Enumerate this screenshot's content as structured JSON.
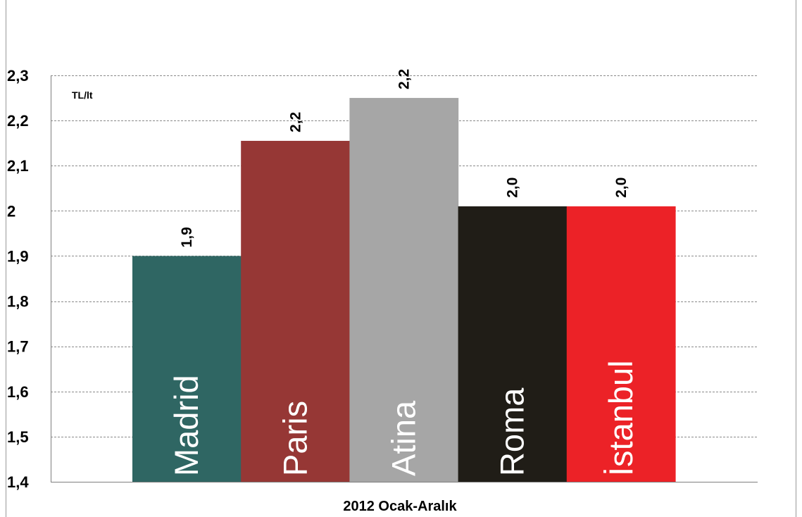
{
  "chart_data": {
    "type": "bar",
    "categories": [
      "Madrid",
      "Paris",
      "Atina",
      "Roma",
      "İstanbul"
    ],
    "values": [
      1.9,
      2.155,
      2.25,
      2.01,
      2.01
    ],
    "data_labels": [
      "1,9",
      "2,2",
      "2,2",
      "2,0",
      "2,0"
    ],
    "colors": [
      "#2f6663",
      "#963735",
      "#a6a6a6",
      "#201d17",
      "#ec2227"
    ],
    "ylim": [
      1.4,
      2.3
    ],
    "yticks": [
      1.4,
      1.5,
      1.6,
      1.7,
      1.8,
      1.9,
      2.0,
      2.1,
      2.2,
      2.3
    ],
    "ytick_labels": [
      "1,4",
      "1,5",
      "1,6",
      "1,7",
      "1,8",
      "1,9",
      "2",
      "2,1",
      "2,2",
      "2,3"
    ],
    "unit_label": "TL/lt",
    "xlabel": "2012 Ocak-Aralık",
    "ylabel": "",
    "grid": true,
    "legend": "none"
  }
}
